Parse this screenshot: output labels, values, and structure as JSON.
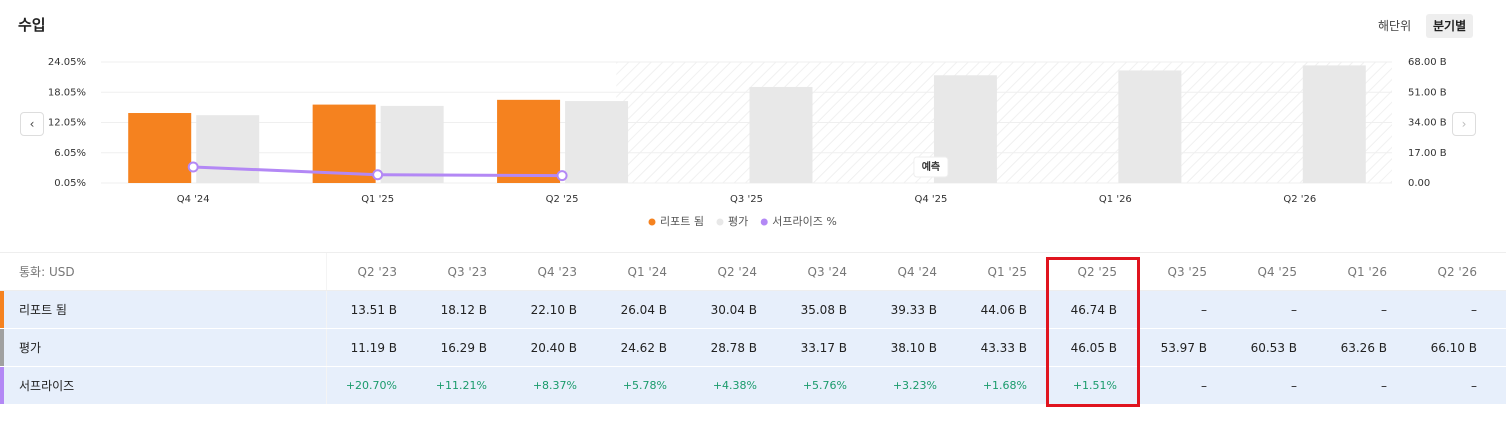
{
  "header": {
    "title": "수입",
    "toggles": [
      "해단위",
      "분기별"
    ]
  },
  "chart_data": {
    "type": "bar",
    "categories": [
      "Q4 '24",
      "Q1 '25",
      "Q2 '25",
      "Q3 '25",
      "Q4 '25",
      "Q1 '26",
      "Q2 '26"
    ],
    "series": [
      {
        "name": "리포트 됨",
        "color": "#f5821f",
        "axis": "y2",
        "values": [
          39.33,
          44.06,
          46.74,
          null,
          null,
          null,
          null
        ]
      },
      {
        "name": "평가",
        "color": "#e8e8e8",
        "axis": "y2",
        "values": [
          38.1,
          43.33,
          46.05,
          53.97,
          60.53,
          63.26,
          66.1
        ]
      },
      {
        "name": "서프라이즈 %",
        "color": "#b388f5",
        "type": "line",
        "values": [
          3.23,
          1.68,
          1.51,
          null,
          null,
          null,
          null
        ]
      }
    ],
    "ylim": [
      0.05,
      24.05
    ],
    "yticks": [
      {
        "value": 0.05,
        "label": "0.05%"
      },
      {
        "value": 6.05,
        "label": "6.05%"
      },
      {
        "value": 12.05,
        "label": "12.05%"
      },
      {
        "value": 18.05,
        "label": "18.05%"
      },
      {
        "value": 24.05,
        "label": "24.05%"
      }
    ],
    "y2lim": [
      0,
      68
    ],
    "y2ticks": [
      {
        "value": 0,
        "label": "0.00"
      },
      {
        "value": 17,
        "label": "17.00 B"
      },
      {
        "value": 34,
        "label": "34.00 B"
      },
      {
        "value": 51,
        "label": "51.00 B"
      },
      {
        "value": 68,
        "label": "68.00 B"
      }
    ],
    "grid": true,
    "annotations": [
      "예측"
    ]
  },
  "table": {
    "corner": "통화: USD",
    "columns": [
      "Q2 '23",
      "Q3 '23",
      "Q4 '23",
      "Q1 '24",
      "Q2 '24",
      "Q3 '24",
      "Q4 '24",
      "Q1 '25",
      "Q2 '25",
      "Q3 '25",
      "Q4 '25",
      "Q1 '26",
      "Q2 '26"
    ],
    "rows": [
      {
        "label": "리포트 됨",
        "color": "#f5821f",
        "cells": [
          "13.51 B",
          "18.12 B",
          "22.10 B",
          "26.04 B",
          "30.04 B",
          "35.08 B",
          "39.33 B",
          "44.06 B",
          "46.74 B",
          "–",
          "–",
          "–",
          "–"
        ]
      },
      {
        "label": "평가",
        "color": "#a0a0a0",
        "cells": [
          "11.19 B",
          "16.29 B",
          "20.40 B",
          "24.62 B",
          "28.78 B",
          "33.17 B",
          "38.10 B",
          "43.33 B",
          "46.05 B",
          "53.97 B",
          "60.53 B",
          "63.26 B",
          "66.10 B"
        ]
      },
      {
        "label": "서프라이즈",
        "color": "#b388f5",
        "cells": [
          "+20.70%",
          "+11.21%",
          "+8.37%",
          "+5.78%",
          "+4.38%",
          "+5.76%",
          "+3.23%",
          "+1.68%",
          "+1.51%",
          "–",
          "–",
          "–",
          "–"
        ]
      }
    ]
  }
}
